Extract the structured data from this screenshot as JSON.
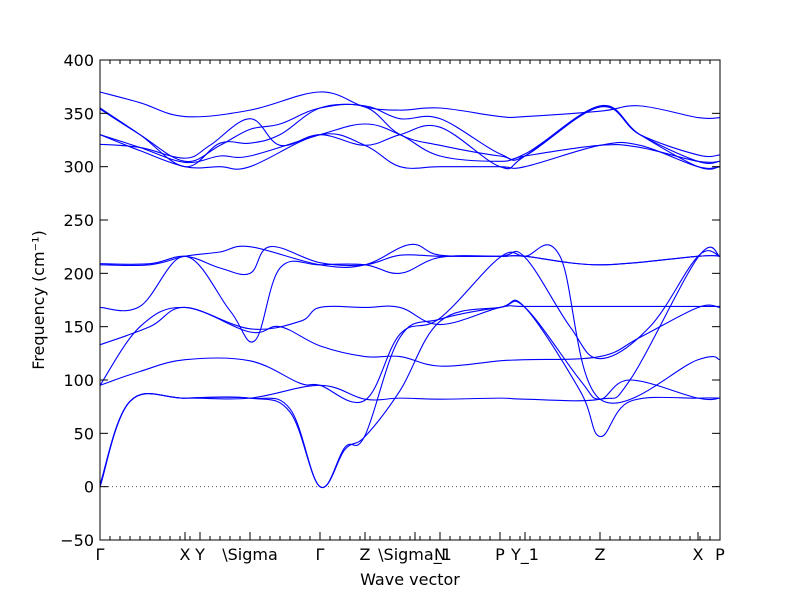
{
  "chart_data": {
    "type": "line",
    "title": "",
    "xlabel": "Wave vector",
    "ylabel": "Frequency (cm⁻¹)",
    "ylim": [
      -50,
      400
    ],
    "yticks": [
      -50,
      0,
      50,
      100,
      150,
      200,
      250,
      300,
      350,
      400
    ],
    "grid": false,
    "legend": "none",
    "line_color": "#0000ff",
    "zero_line": {
      "y": 0,
      "style": "dotted",
      "color": "#555555"
    },
    "xlim": [
      0,
      6.2
    ],
    "xticks": [
      {
        "x": 0.0,
        "label": "Γ"
      },
      {
        "x": 0.85,
        "label": "X"
      },
      {
        "x": 1.0,
        "label": "Y"
      },
      {
        "x": 1.5,
        "label": "\\Sigma"
      },
      {
        "x": 2.2,
        "label": "Γ"
      },
      {
        "x": 2.65,
        "label": "Z"
      },
      {
        "x": 3.15,
        "label": "\\Sigma_1"
      },
      {
        "x": 3.4,
        "label": "N"
      },
      {
        "x": 4.0,
        "label": "P"
      },
      {
        "x": 4.25,
        "label": "Y_1"
      },
      {
        "x": 5.0,
        "label": "Z"
      },
      {
        "x": 5.98,
        "label": "X"
      },
      {
        "x": 6.2,
        "label": "P"
      }
    ],
    "series": [
      {
        "x": [
          0,
          0.3,
          0.85,
          1.5,
          1.9,
          2.2,
          2.45,
          2.65,
          3.0,
          3.4,
          4.0,
          4.25,
          4.8,
          5.0,
          5.3,
          5.98,
          6.2
        ],
        "y": [
          0,
          80,
          83,
          83,
          70,
          0,
          35,
          47,
          90,
          155,
          168,
          168,
          90,
          47,
          80,
          83,
          83
        ]
      },
      {
        "x": [
          0,
          0.3,
          0.85,
          1.5,
          1.9,
          2.2,
          2.45,
          2.65,
          3.0,
          3.4,
          4.0,
          4.25,
          4.8,
          5.0,
          5.3,
          5.98,
          6.2
        ],
        "y": [
          0,
          80,
          83,
          83,
          73,
          0,
          37,
          48,
          140,
          157,
          168,
          168,
          100,
          82,
          100,
          83,
          83
        ]
      },
      {
        "x": [
          0,
          0.3,
          0.85,
          1.5,
          2.2,
          2.65,
          3.0,
          3.4,
          4.0,
          4.25,
          5.0,
          5.3,
          5.98,
          6.2
        ],
        "y": [
          2,
          80,
          83,
          83,
          95,
          82,
          83,
          82,
          83,
          82,
          82,
          100,
          215,
          216
        ]
      },
      {
        "x": [
          0,
          0.4,
          0.85,
          1.5,
          2.0,
          2.2,
          2.65,
          3.0,
          3.4,
          4.0,
          4.25,
          4.6,
          5.0,
          5.98,
          6.2
        ],
        "y": [
          95,
          108,
          119,
          118,
          97,
          95,
          81,
          143,
          158,
          215,
          216,
          216,
          82,
          119,
          119
        ]
      },
      {
        "x": [
          0,
          0.4,
          0.85,
          1.5,
          1.8,
          2.2,
          2.65,
          3.0,
          3.4,
          4.0,
          4.25,
          5.0,
          5.4,
          5.98,
          6.2
        ],
        "y": [
          95,
          150,
          168,
          145,
          150,
          132,
          122,
          122,
          113,
          118,
          119,
          122,
          140,
          168,
          168
        ]
      },
      {
        "x": [
          0,
          0.5,
          0.85,
          1.5,
          2.0,
          2.2,
          2.65,
          3.0,
          3.4,
          4.0,
          4.25,
          5.0,
          5.98,
          6.2
        ],
        "y": [
          133,
          150,
          168,
          148,
          155,
          168,
          168,
          168,
          152,
          168,
          169,
          169,
          169,
          169
        ]
      },
      {
        "x": [
          0,
          0.4,
          0.85,
          1.3,
          1.55,
          1.8,
          2.2,
          2.65,
          3.0,
          3.4,
          4.0,
          4.25,
          4.7,
          5.0,
          5.5,
          5.98,
          6.2
        ],
        "y": [
          168,
          169,
          216,
          165,
          137,
          205,
          208,
          208,
          200,
          215,
          216,
          215,
          150,
          120,
          150,
          216,
          216
        ]
      },
      {
        "x": [
          0,
          0.5,
          0.85,
          1.2,
          1.5,
          2.2,
          2.65,
          3.1,
          3.4,
          4.0,
          4.25,
          5.0,
          5.98,
          6.2
        ],
        "y": [
          208,
          208,
          216,
          220,
          225,
          208,
          208,
          227,
          217,
          216,
          216,
          208,
          216,
          216
        ]
      },
      {
        "x": [
          0,
          0.5,
          0.85,
          1.2,
          1.5,
          1.7,
          2.2,
          2.65,
          3.0,
          3.4,
          4.0,
          4.25,
          5.0,
          5.98,
          6.2
        ],
        "y": [
          209,
          209,
          216,
          205,
          200,
          225,
          210,
          208,
          217,
          216,
          216,
          216,
          208,
          216,
          216
        ]
      },
      {
        "x": [
          0,
          0.4,
          0.85,
          1.2,
          1.5,
          2.2,
          2.65,
          3.0,
          3.4,
          4.0,
          4.25,
          5.0,
          5.4,
          5.98,
          6.2
        ],
        "y": [
          330,
          315,
          300,
          300,
          300,
          330,
          320,
          300,
          300,
          300,
          300,
          320,
          320,
          300,
          300
        ]
      },
      {
        "x": [
          0,
          0.4,
          0.85,
          1.2,
          1.5,
          2.2,
          2.65,
          3.0,
          3.4,
          4.0,
          4.25,
          5.0,
          5.4,
          5.98,
          6.2
        ],
        "y": [
          330,
          318,
          304,
          310,
          310,
          330,
          340,
          330,
          310,
          305,
          310,
          320,
          318,
          305,
          305
        ]
      },
      {
        "x": [
          0,
          0.4,
          0.85,
          1.1,
          1.5,
          1.8,
          2.2,
          2.65,
          3.0,
          3.4,
          4.0,
          4.25,
          5.0,
          5.4,
          5.98,
          6.2
        ],
        "y": [
          321,
          318,
          308,
          320,
          345,
          320,
          330,
          320,
          330,
          337,
          300,
          310,
          357,
          330,
          305,
          305
        ]
      },
      {
        "x": [
          0,
          0.4,
          0.85,
          1.2,
          1.5,
          1.8,
          2.2,
          2.65,
          3.0,
          3.4,
          4.0,
          4.25,
          5.0,
          5.4,
          5.98,
          6.2
        ],
        "y": [
          354,
          330,
          305,
          320,
          335,
          340,
          355,
          356,
          330,
          320,
          310,
          310,
          356,
          330,
          300,
          300
        ]
      },
      {
        "x": [
          0,
          0.4,
          0.85,
          1.2,
          1.5,
          1.8,
          2.2,
          2.65,
          3.0,
          3.4,
          4.0,
          4.25,
          5.0,
          5.4,
          5.98,
          6.2
        ],
        "y": [
          355,
          330,
          300,
          322,
          322,
          330,
          355,
          357,
          345,
          345,
          312,
          312,
          356,
          330,
          311,
          311
        ]
      },
      {
        "x": [
          0,
          0.4,
          0.85,
          1.5,
          2.2,
          2.65,
          3.0,
          3.4,
          4.0,
          4.25,
          5.0,
          5.4,
          5.98,
          6.2
        ],
        "y": [
          370,
          360,
          347,
          353,
          370,
          356,
          353,
          355,
          347,
          347,
          352,
          357,
          346,
          346
        ]
      }
    ]
  }
}
